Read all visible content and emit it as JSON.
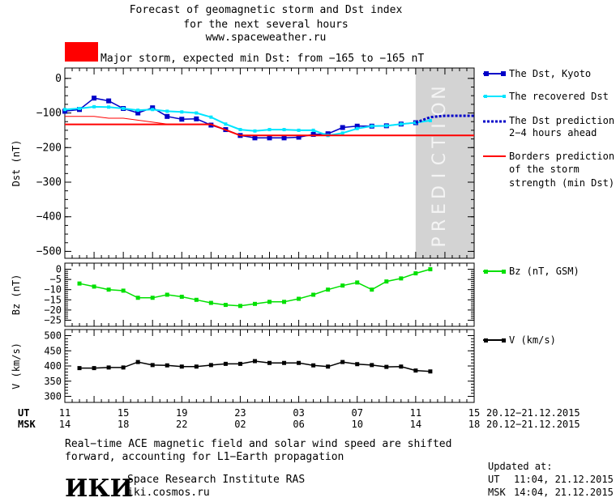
{
  "header": {
    "title_lines": [
      "Forecast of geomagnetic storm and Dst index",
      "for the next several hours",
      "www.spaceweather.ru"
    ],
    "storm_label": "Major storm, expected min Dst: from −165 to −165 nT",
    "storm_color": "#ff0000"
  },
  "colors": {
    "dst": "#0000c8",
    "recovered": "#00e5ff",
    "border": "#ff0000",
    "bz": "#00e000",
    "v": "#000000",
    "prediction_bg": "#d3d3d3"
  },
  "prediction_letters": [
    "P",
    "R",
    "E",
    "D",
    "I",
    "C",
    "T",
    "I",
    "O",
    "N"
  ],
  "chart_data": [
    {
      "type": "line",
      "ylabel": "Dst (nT)",
      "ylim": [
        -520,
        30
      ],
      "yticks": [
        0,
        -100,
        -200,
        -300,
        -400,
        -500
      ],
      "xlim": [
        0,
        56
      ],
      "series": [
        {
          "name": "The Dst, Kyoto",
          "x": [
            0,
            2,
            4,
            6,
            8,
            10,
            12,
            14,
            16,
            18,
            20,
            22,
            24,
            26,
            28,
            30,
            32,
            34,
            36,
            38,
            40,
            42,
            44,
            46,
            48
          ],
          "y": [
            -95,
            -90,
            -57,
            -65,
            -87,
            -100,
            -85,
            -110,
            -118,
            -117,
            -135,
            -148,
            -165,
            -172,
            -172,
            -172,
            -170,
            -162,
            -160,
            -142,
            -138,
            -138,
            -137,
            -132,
            -128
          ]
        },
        {
          "name": "The recovered Dst",
          "x": [
            0,
            2,
            4,
            6,
            8,
            10,
            12,
            14,
            16,
            18,
            20,
            22,
            24,
            26,
            28,
            30,
            32,
            34,
            36,
            38,
            40,
            42,
            44,
            46,
            48,
            50
          ],
          "y": [
            -90,
            -87,
            -82,
            -83,
            -87,
            -92,
            -90,
            -95,
            -97,
            -100,
            -112,
            -132,
            -148,
            -152,
            -148,
            -148,
            -150,
            -150,
            -165,
            -158,
            -145,
            -138,
            -137,
            -132,
            -128,
            -122
          ]
        },
        {
          "name": "The Dst prediction 2-4 hours ahead",
          "x": [
            48,
            49,
            50,
            51,
            52,
            54,
            56
          ],
          "y": [
            -128,
            -120,
            -112,
            -110,
            -108,
            -108,
            -108
          ]
        },
        {
          "name": "Borders prediction of the storm strength (min Dst)",
          "x": [
            0,
            4,
            6,
            8,
            14,
            20,
            22,
            24,
            30,
            40,
            56
          ],
          "y": [
            -110,
            -110,
            -115,
            -115,
            -132,
            -132,
            -150,
            -165,
            -165,
            -165,
            -165
          ]
        },
        {
          "name": "Borders prediction of the storm strength (min Dst)",
          "x": [
            0,
            4,
            8,
            14,
            20,
            24,
            56
          ],
          "y": [
            -133,
            -133,
            -133,
            -133,
            -133,
            -165,
            -165
          ]
        }
      ]
    },
    {
      "type": "line",
      "ylabel": "Bz (nT)",
      "ylim": [
        -28,
        3
      ],
      "yticks": [
        0,
        -5,
        -10,
        -15,
        -20,
        -25
      ],
      "xlim": [
        0,
        56
      ],
      "series": [
        {
          "name": "Bz (nT, GSM)",
          "x": [
            2,
            4,
            6,
            8,
            10,
            12,
            14,
            16,
            18,
            20,
            22,
            24,
            26,
            28,
            30,
            32,
            34,
            36,
            38,
            40,
            42,
            44,
            46,
            48,
            50
          ],
          "y": [
            -7,
            -8.5,
            -10,
            -10.5,
            -14,
            -14,
            -12.5,
            -13.5,
            -15,
            -16.5,
            -17.5,
            -18,
            -17,
            -16,
            -16,
            -14.5,
            -12.5,
            -10,
            -8,
            -6.5,
            -10,
            -6,
            -4.5,
            -2,
            0
          ]
        }
      ]
    },
    {
      "type": "line",
      "ylabel": "V (km/s)",
      "ylim": [
        280,
        520
      ],
      "yticks": [
        500,
        450,
        400,
        350,
        300
      ],
      "xlim": [
        0,
        56
      ],
      "series": [
        {
          "name": "V (km/s)",
          "x": [
            2,
            4,
            6,
            8,
            10,
            12,
            14,
            16,
            18,
            20,
            22,
            24,
            26,
            28,
            30,
            32,
            34,
            36,
            38,
            40,
            42,
            44,
            46,
            48,
            50
          ],
          "y": [
            393,
            393,
            395,
            395,
            413,
            403,
            402,
            398,
            398,
            403,
            407,
            407,
            416,
            410,
            410,
            410,
            402,
            398,
            413,
            406,
            403,
            397,
            398,
            385,
            382
          ]
        }
      ]
    }
  ],
  "xaxis": {
    "ut_label": "UT",
    "msk_label": "MSK",
    "ut_ticks": [
      "11",
      "15",
      "19",
      "23",
      "03",
      "07",
      "11",
      "15"
    ],
    "msk_ticks": [
      "14",
      "18",
      "22",
      "02",
      "06",
      "10",
      "14",
      "18"
    ],
    "ut_range": "20.12−21.12.2015",
    "msk_range": "20.12−21.12.2015"
  },
  "legend": {
    "dst": "The Dst, Kyoto",
    "recovered": "The recovered Dst",
    "pred_1": "The Dst prediction",
    "pred_2": "2−4 hours ahead",
    "border_1": "Borders prediction",
    "border_2": "of the storm",
    "border_3": "strength (min Dst)",
    "bz": "Bz (nT, GSM)",
    "v": "V (km/s)"
  },
  "footer": {
    "note_1": "Real−time ACE magnetic field and solar wind speed are shifted",
    "note_2": "forward, accounting for L1−Earth propagation",
    "logo": "ИКИ",
    "institute": "Space Research Institute RAS",
    "site": "iki.cosmos.ru",
    "updated": "Updated at:",
    "updated_ut_label": "UT",
    "updated_ut": "11:04, 21.12.2015",
    "updated_msk_label": "MSK",
    "updated_msk": "14:04, 21.12.2015"
  }
}
